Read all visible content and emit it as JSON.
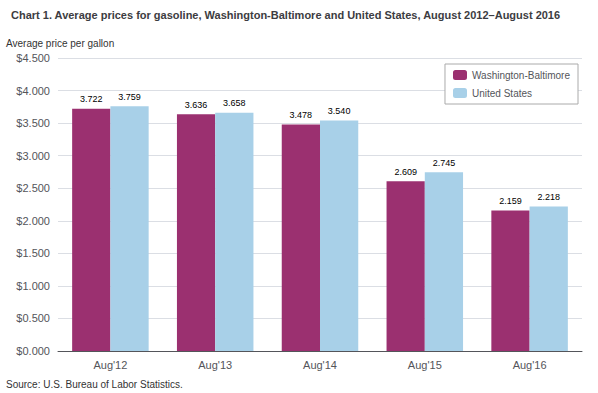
{
  "chart_data": {
    "type": "bar",
    "title": "Chart 1. Average prices for gasoline, Washington-Baltimore and United States, August 2012–August 2016",
    "ylabel": "Average price per gallon",
    "source": "Source: U.S. Bureau of Labor Statistics.",
    "categories": [
      "Aug'12",
      "Aug'13",
      "Aug'14",
      "Aug'15",
      "Aug'16"
    ],
    "series": [
      {
        "name": "Washington-Baltimore",
        "color": "#9B3070",
        "values": [
          3.722,
          3.636,
          3.478,
          2.609,
          2.159
        ],
        "value_labels": [
          "3.722",
          "3.636",
          "3.478",
          "2.609",
          "2.159"
        ]
      },
      {
        "name": "United States",
        "color": "#A8D0E8",
        "values": [
          3.759,
          3.658,
          3.54,
          2.745,
          2.218
        ],
        "value_labels": [
          "3.759",
          "3.658",
          "3.540",
          "2.745",
          "2.218"
        ]
      }
    ],
    "ylim": [
      0,
      4.5
    ],
    "yticks": [
      {
        "value": 0.0,
        "label": "$0.000"
      },
      {
        "value": 0.5,
        "label": "$0.500"
      },
      {
        "value": 1.0,
        "label": "$1.000"
      },
      {
        "value": 1.5,
        "label": "$1.500"
      },
      {
        "value": 2.0,
        "label": "$2.000"
      },
      {
        "value": 2.5,
        "label": "$2.500"
      },
      {
        "value": 3.0,
        "label": "$3.000"
      },
      {
        "value": 3.5,
        "label": "$3.500"
      },
      {
        "value": 4.0,
        "label": "$4.000"
      },
      {
        "value": 4.5,
        "label": "$4.500"
      }
    ],
    "grid": true,
    "legend": "upper right",
    "data_labels": true
  }
}
